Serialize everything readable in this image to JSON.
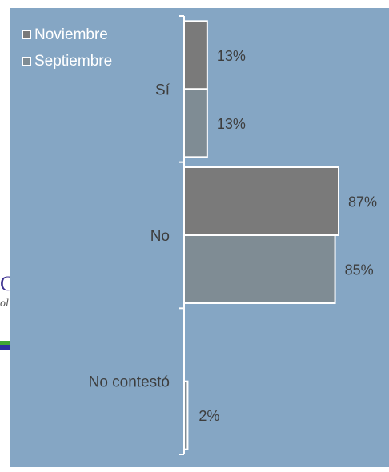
{
  "chart_data": {
    "type": "bar",
    "orientation": "horizontal",
    "categories": [
      "Sí",
      "No",
      "No contestó"
    ],
    "series": [
      {
        "name": "Noviembre",
        "values": [
          13,
          87,
          0
        ],
        "labels": [
          "13%",
          "87%",
          ""
        ],
        "color": "#7a7a7a"
      },
      {
        "name": "Septiembre",
        "values": [
          13,
          85,
          2
        ],
        "labels": [
          "13%",
          "85%",
          "2%"
        ],
        "color": "#7f8c94"
      }
    ],
    "unit": "%",
    "legend_position": "top-left",
    "grid": false,
    "colors": {
      "background": "#85a6c4",
      "axis": "#ffffff",
      "text": "#3d3d3d"
    }
  },
  "slide_edge": {
    "letter": "C",
    "sub": "ol"
  }
}
